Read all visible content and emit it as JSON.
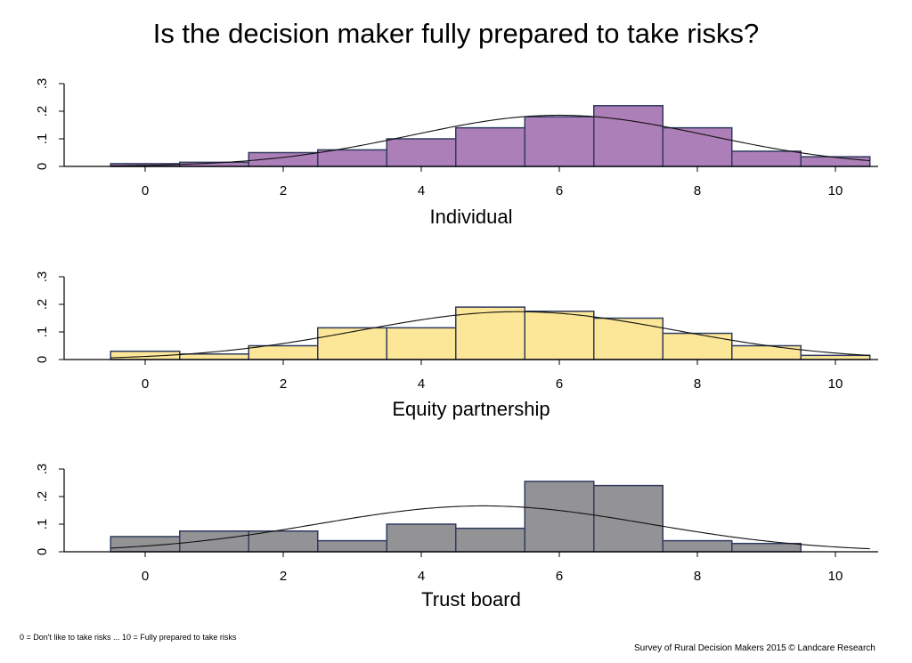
{
  "title": "Is the decision maker fully prepared to take risks?",
  "footnote": "0 = Don't like to take risks ... 10 = Fully prepared to take risks",
  "credit": "Survey of Rural Decision Makers 2015 © Landcare Research",
  "chart_data": [
    {
      "type": "bar",
      "subplot_label": "Individual",
      "color": "#ad7fb8",
      "x": [
        0,
        1,
        2,
        3,
        4,
        5,
        6,
        7,
        8,
        9,
        10
      ],
      "values": [
        0.01,
        0.015,
        0.05,
        0.06,
        0.1,
        0.14,
        0.18,
        0.22,
        0.14,
        0.055,
        0.035
      ],
      "density_curve": {
        "mean": 6.0,
        "sd": 2.15
      },
      "x_ticks": [
        0,
        2,
        4,
        6,
        8,
        10
      ],
      "y_ticks": [
        0,
        0.1,
        0.2,
        0.3
      ],
      "y_tick_labels": [
        "0",
        ".1",
        ".2",
        ".3"
      ],
      "xlim": [
        -1,
        10.5
      ],
      "ylim": [
        0,
        0.3
      ]
    },
    {
      "type": "bar",
      "subplot_label": "Equity partnership",
      "color": "#fbe797",
      "x": [
        0,
        1,
        2,
        3,
        4,
        5,
        6,
        7,
        8,
        9,
        10
      ],
      "values": [
        0.03,
        0.02,
        0.05,
        0.115,
        0.115,
        0.19,
        0.175,
        0.15,
        0.095,
        0.05,
        0.015
      ],
      "density_curve": {
        "mean": 5.4,
        "sd": 2.3
      },
      "x_ticks": [
        0,
        2,
        4,
        6,
        8,
        10
      ],
      "y_ticks": [
        0,
        0.1,
        0.2,
        0.3
      ],
      "y_tick_labels": [
        "0",
        ".1",
        ".2",
        ".3"
      ],
      "xlim": [
        -1,
        10.5
      ],
      "ylim": [
        0,
        0.3
      ]
    },
    {
      "type": "bar",
      "subplot_label": "Trust board",
      "color": "#939396",
      "x": [
        0,
        1,
        2,
        3,
        4,
        5,
        6,
        7,
        8,
        9
      ],
      "values": [
        0.055,
        0.075,
        0.075,
        0.04,
        0.1,
        0.085,
        0.255,
        0.24,
        0.04,
        0.03
      ],
      "density_curve": {
        "mean": 4.9,
        "sd": 2.4
      },
      "x_ticks": [
        0,
        2,
        4,
        6,
        8,
        10
      ],
      "y_ticks": [
        0,
        0.1,
        0.2,
        0.3
      ],
      "y_tick_labels": [
        "0",
        ".1",
        ".2",
        ".3"
      ],
      "xlim": [
        -1,
        10.5
      ],
      "ylim": [
        0,
        0.3
      ]
    }
  ]
}
